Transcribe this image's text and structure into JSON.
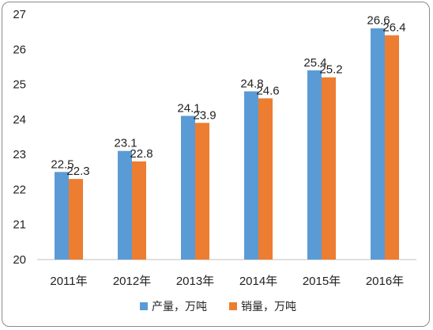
{
  "chart_data": {
    "type": "bar",
    "categories": [
      "2011年",
      "2012年",
      "2013年",
      "2014年",
      "2015年",
      "2016年"
    ],
    "series": [
      {
        "name": "产量，万吨",
        "values": [
          22.5,
          23.1,
          24.1,
          24.8,
          25.4,
          26.6
        ],
        "color": "#5b9bd5"
      },
      {
        "name": "销量，万吨",
        "values": [
          22.3,
          22.8,
          23.9,
          24.6,
          25.2,
          26.4
        ],
        "color": "#ed7d31"
      }
    ],
    "ylim": [
      20,
      27
    ],
    "yticks": [
      20,
      21,
      22,
      23,
      24,
      25,
      26,
      27
    ],
    "legend_position": "bottom",
    "grid": false,
    "data_labels": true
  }
}
